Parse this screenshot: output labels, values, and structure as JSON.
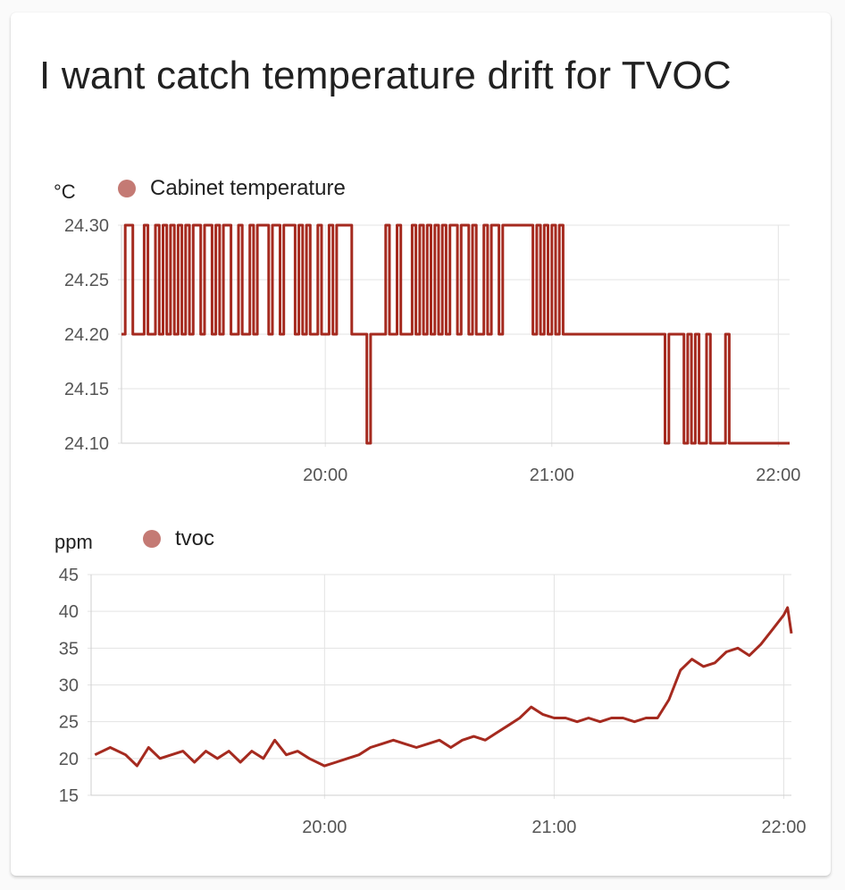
{
  "card": {
    "title": "I want catch temperature drift for TVOC"
  },
  "colors": {
    "series": "#a52a1f",
    "legend_dot": "#c47a74",
    "grid": "#e3e3e3",
    "axis": "#cfcfcf",
    "tick": "#555555"
  },
  "chart_data": [
    {
      "type": "line",
      "step": true,
      "unit": "°C",
      "title": "",
      "xlabel": "",
      "ylabel": "°C",
      "series": [
        {
          "name": "Cabinet temperature",
          "points": [
            [
              "19:06",
              24.2
            ],
            [
              "19:07",
              24.3
            ],
            [
              "19:09",
              24.2
            ],
            [
              "19:12",
              24.3
            ],
            [
              "19:13",
              24.2
            ],
            [
              "19:15",
              24.3
            ],
            [
              "19:16",
              24.2
            ],
            [
              "19:17",
              24.3
            ],
            [
              "19:18",
              24.2
            ],
            [
              "19:19",
              24.3
            ],
            [
              "19:20",
              24.2
            ],
            [
              "19:21",
              24.3
            ],
            [
              "19:22",
              24.2
            ],
            [
              "19:23",
              24.3
            ],
            [
              "19:24",
              24.2
            ],
            [
              "19:25",
              24.3
            ],
            [
              "19:27",
              24.2
            ],
            [
              "19:28",
              24.3
            ],
            [
              "19:30",
              24.2
            ],
            [
              "19:31",
              24.3
            ],
            [
              "19:32",
              24.2
            ],
            [
              "19:33",
              24.3
            ],
            [
              "19:35",
              24.2
            ],
            [
              "19:37",
              24.3
            ],
            [
              "19:38",
              24.2
            ],
            [
              "19:40",
              24.3
            ],
            [
              "19:41",
              24.2
            ],
            [
              "19:42",
              24.3
            ],
            [
              "19:45",
              24.2
            ],
            [
              "19:46",
              24.3
            ],
            [
              "19:48",
              24.2
            ],
            [
              "19:49",
              24.3
            ],
            [
              "19:52",
              24.2
            ],
            [
              "19:53",
              24.3
            ],
            [
              "19:54",
              24.2
            ],
            [
              "19:55",
              24.3
            ],
            [
              "19:56",
              24.2
            ],
            [
              "19:58",
              24.3
            ],
            [
              "19:59",
              24.2
            ],
            [
              "20:01",
              24.3
            ],
            [
              "20:02",
              24.2
            ],
            [
              "20:03",
              24.3
            ],
            [
              "20:07",
              24.2
            ],
            [
              "20:11",
              24.1
            ],
            [
              "20:12",
              24.2
            ],
            [
              "20:16",
              24.3
            ],
            [
              "20:17",
              24.2
            ],
            [
              "20:19",
              24.3
            ],
            [
              "20:20",
              24.2
            ],
            [
              "20:23",
              24.3
            ],
            [
              "20:24",
              24.2
            ],
            [
              "20:25",
              24.3
            ],
            [
              "20:26",
              24.2
            ],
            [
              "20:27",
              24.3
            ],
            [
              "20:28",
              24.2
            ],
            [
              "20:29",
              24.3
            ],
            [
              "20:30",
              24.2
            ],
            [
              "20:31",
              24.3
            ],
            [
              "20:32",
              24.2
            ],
            [
              "20:33",
              24.3
            ],
            [
              "20:35",
              24.2
            ],
            [
              "20:36",
              24.3
            ],
            [
              "20:38",
              24.2
            ],
            [
              "20:39",
              24.3
            ],
            [
              "20:40",
              24.2
            ],
            [
              "20:42",
              24.3
            ],
            [
              "20:43",
              24.2
            ],
            [
              "20:44",
              24.3
            ],
            [
              "20:46",
              24.2
            ],
            [
              "20:47",
              24.3
            ],
            [
              "20:55",
              24.2
            ],
            [
              "20:56",
              24.3
            ],
            [
              "20:57",
              24.2
            ],
            [
              "20:58",
              24.3
            ],
            [
              "20:59",
              24.2
            ],
            [
              "21:00",
              24.3
            ],
            [
              "21:01",
              24.2
            ],
            [
              "21:02",
              24.3
            ],
            [
              "21:03",
              24.2
            ],
            [
              "21:30",
              24.1
            ],
            [
              "21:31",
              24.2
            ],
            [
              "21:35",
              24.1
            ],
            [
              "21:36",
              24.2
            ],
            [
              "21:37",
              24.1
            ],
            [
              "21:38",
              24.2
            ],
            [
              "21:39",
              24.1
            ],
            [
              "21:41",
              24.2
            ],
            [
              "21:42",
              24.1
            ],
            [
              "21:46",
              24.2
            ],
            [
              "21:47",
              24.1
            ],
            [
              "22:03",
              24.1
            ]
          ]
        }
      ],
      "xlim": [
        "19:06",
        "22:03"
      ],
      "ylim": [
        24.1,
        24.3
      ],
      "y_ticks": [
        24.1,
        24.15,
        24.2,
        24.25,
        24.3
      ],
      "y_tick_labels": [
        "24.10",
        "24.15",
        "24.20",
        "24.25",
        "24.30"
      ],
      "x_ticks": [
        "20:00",
        "21:00",
        "22:00"
      ],
      "grid": true,
      "legend_position": "top-left"
    },
    {
      "type": "line",
      "unit": "ppm",
      "title": "",
      "xlabel": "",
      "ylabel": "ppm",
      "series": [
        {
          "name": "tvoc",
          "points": [
            [
              "19:00",
              20.5
            ],
            [
              "19:04",
              21.5
            ],
            [
              "19:08",
              20.5
            ],
            [
              "19:11",
              19.0
            ],
            [
              "19:14",
              21.5
            ],
            [
              "19:17",
              20.0
            ],
            [
              "19:20",
              20.5
            ],
            [
              "19:23",
              21.0
            ],
            [
              "19:26",
              19.5
            ],
            [
              "19:29",
              21.0
            ],
            [
              "19:32",
              20.0
            ],
            [
              "19:35",
              21.0
            ],
            [
              "19:38",
              19.5
            ],
            [
              "19:41",
              21.0
            ],
            [
              "19:44",
              20.0
            ],
            [
              "19:47",
              22.5
            ],
            [
              "19:50",
              20.5
            ],
            [
              "19:53",
              21.0
            ],
            [
              "19:56",
              20.0
            ],
            [
              "20:00",
              19.0
            ],
            [
              "20:03",
              19.5
            ],
            [
              "20:06",
              20.0
            ],
            [
              "20:09",
              20.5
            ],
            [
              "20:12",
              21.5
            ],
            [
              "20:15",
              22.0
            ],
            [
              "20:18",
              22.5
            ],
            [
              "20:21",
              22.0
            ],
            [
              "20:24",
              21.5
            ],
            [
              "20:27",
              22.0
            ],
            [
              "20:30",
              22.5
            ],
            [
              "20:33",
              21.5
            ],
            [
              "20:36",
              22.5
            ],
            [
              "20:39",
              23.0
            ],
            [
              "20:42",
              22.5
            ],
            [
              "20:45",
              23.5
            ],
            [
              "20:48",
              24.5
            ],
            [
              "20:51",
              25.5
            ],
            [
              "20:54",
              27.0
            ],
            [
              "20:57",
              26.0
            ],
            [
              "21:00",
              25.5
            ],
            [
              "21:03",
              25.5
            ],
            [
              "21:06",
              25.0
            ],
            [
              "21:09",
              25.5
            ],
            [
              "21:12",
              25.0
            ],
            [
              "21:15",
              25.5
            ],
            [
              "21:18",
              25.5
            ],
            [
              "21:21",
              25.0
            ],
            [
              "21:24",
              25.5
            ],
            [
              "21:27",
              25.5
            ],
            [
              "21:30",
              28.0
            ],
            [
              "21:33",
              32.0
            ],
            [
              "21:36",
              33.5
            ],
            [
              "21:39",
              32.5
            ],
            [
              "21:42",
              33.0
            ],
            [
              "21:45",
              34.5
            ],
            [
              "21:48",
              35.0
            ],
            [
              "21:51",
              34.0
            ],
            [
              "21:54",
              35.5
            ],
            [
              "21:57",
              37.5
            ],
            [
              "22:00",
              39.5
            ],
            [
              "22:01",
              40.5
            ],
            [
              "22:02",
              37.0
            ]
          ]
        }
      ],
      "xlim": [
        "18:59",
        "22:02"
      ],
      "ylim": [
        15,
        45
      ],
      "y_ticks": [
        15,
        20,
        25,
        30,
        35,
        40,
        45
      ],
      "y_tick_labels": [
        "15",
        "20",
        "25",
        "30",
        "35",
        "40",
        "45"
      ],
      "x_ticks": [
        "20:00",
        "21:00",
        "22:00"
      ],
      "grid": true,
      "legend_position": "top-left"
    }
  ]
}
